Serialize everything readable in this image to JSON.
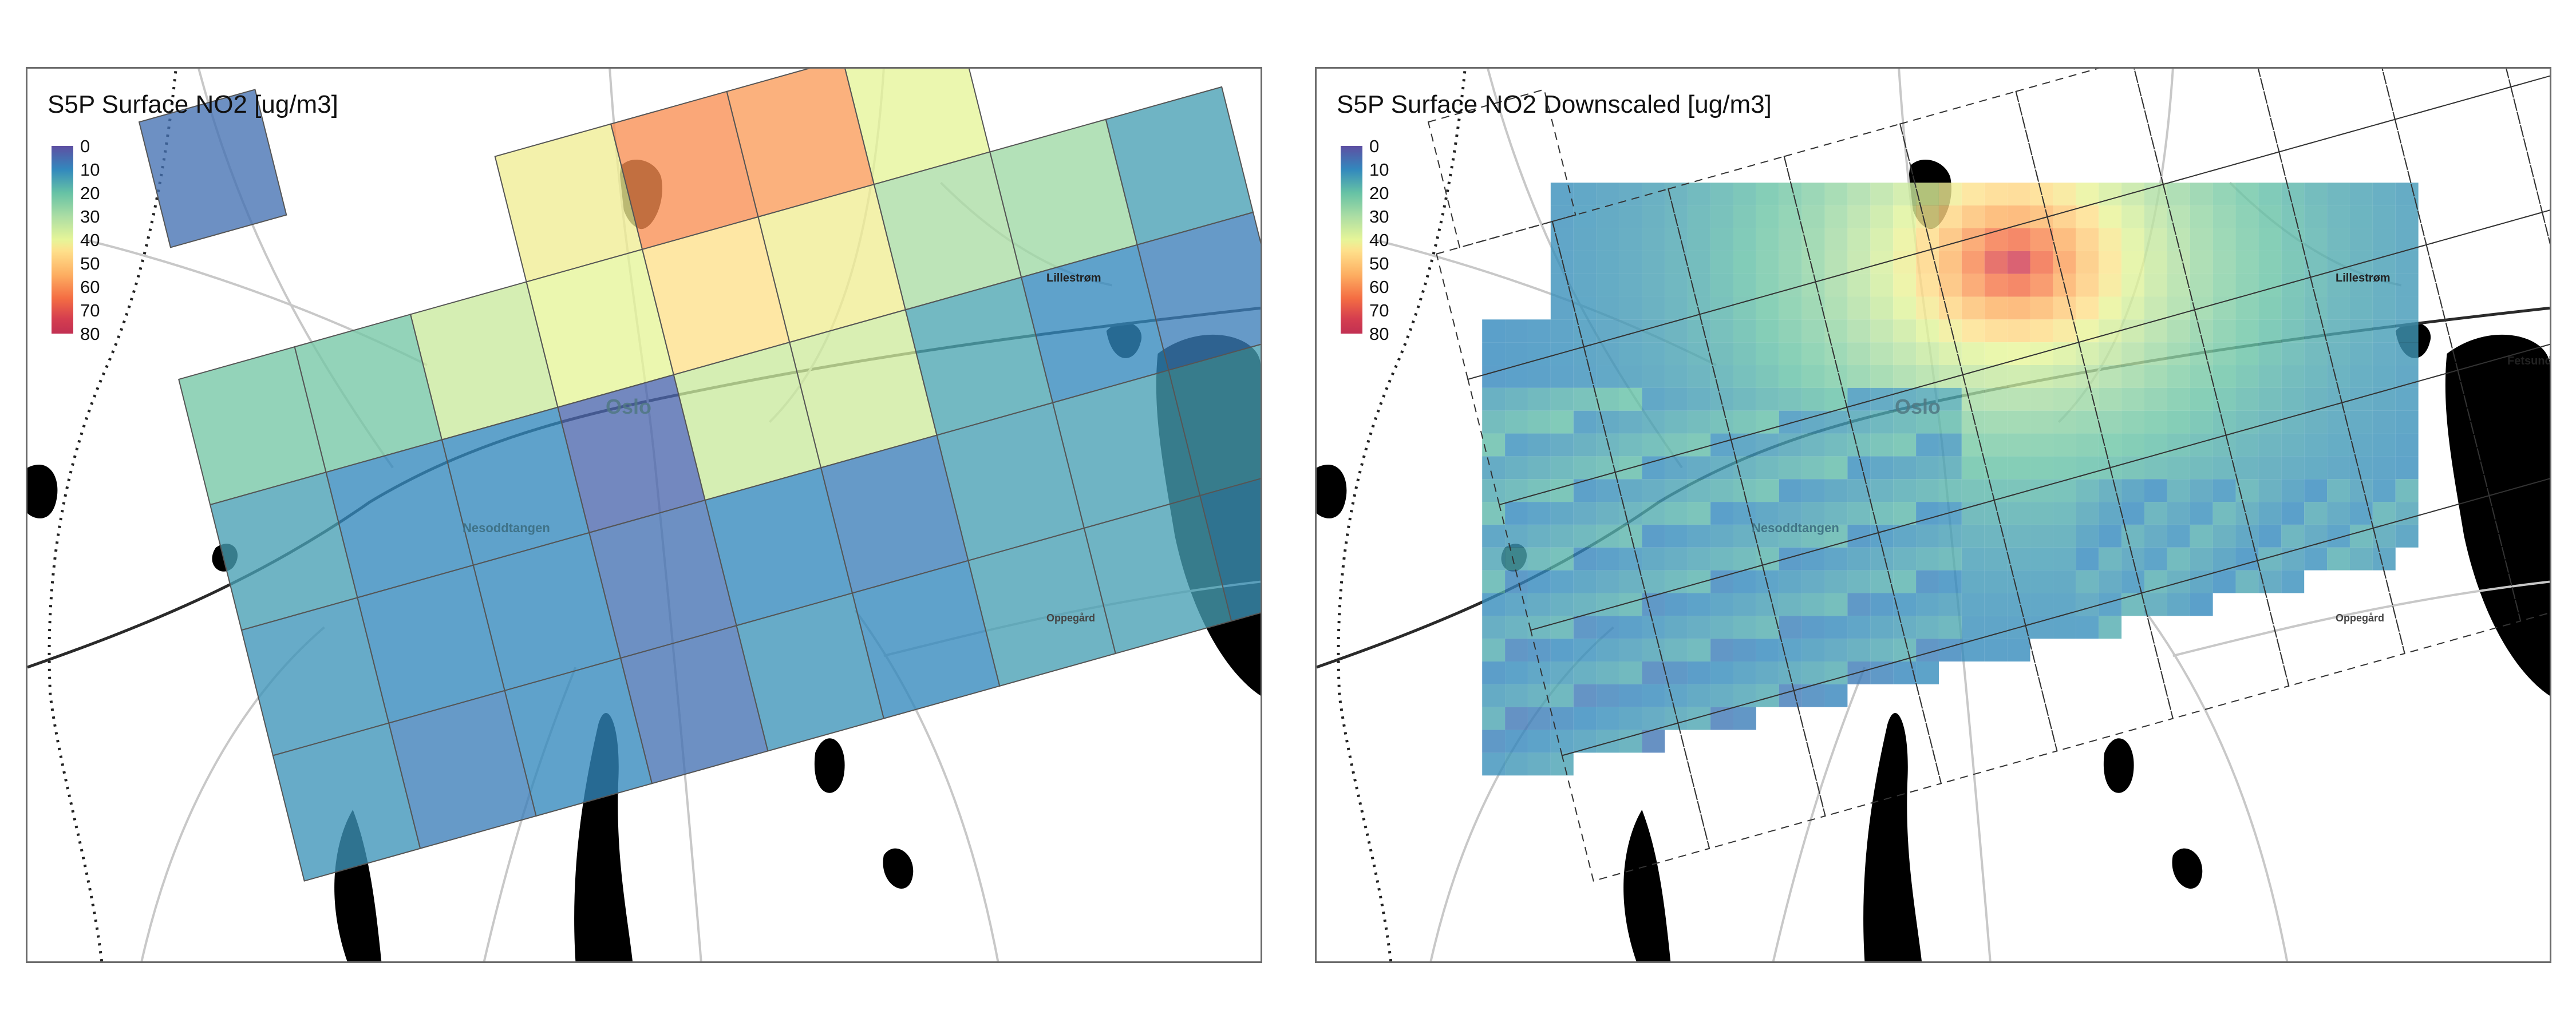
{
  "panels": {
    "left": {
      "title": "S5P Surface NO2 [ug/m3]"
    },
    "right": {
      "title": "S5P Surface NO2 Downscaled [ug/m3]"
    }
  },
  "legend": {
    "ticks": [
      "0",
      "10",
      "20",
      "30",
      "40",
      "50",
      "60",
      "70",
      "80"
    ],
    "vmin": 0,
    "vmax": 80,
    "colormap": "Spectral_r"
  },
  "places": {
    "oslo": "Oslo",
    "nesoddtangen": "Nesoddtangen",
    "lillestrom": "Lillestrøm",
    "fetsund": "Fetsund",
    "oppegard": "Oppegård"
  },
  "colors": {
    "map_border": "#6b6b6b",
    "water": "#000000",
    "roads": "#d2d2d2"
  },
  "chart_data": [
    {
      "type": "heatmap",
      "title": "S5P Surface NO2 [ug/m3]",
      "units": "ug/m3",
      "color_range": [
        0,
        80
      ],
      "grid_rows": [
        [
          6,
          null,
          null,
          null,
          null,
          null,
          null,
          null,
          null,
          null
        ],
        [
          null,
          null,
          null,
          42,
          60,
          58,
          40,
          null,
          null,
          null
        ],
        [
          22,
          22,
          35,
          40,
          45,
          42,
          30,
          28,
          14,
          null
        ],
        [
          14,
          10,
          10,
          4,
          35,
          36,
          15,
          10,
          8,
          null
        ],
        [
          12,
          10,
          10,
          6,
          10,
          8,
          14,
          14,
          14,
          6
        ],
        [
          12,
          8,
          10,
          6,
          12,
          10,
          14,
          14,
          12,
          8
        ]
      ]
    },
    {
      "type": "heatmap",
      "title": "S5P Surface NO2 Downscaled [ug/m3]",
      "units": "ug/m3",
      "color_range": [
        0,
        80
      ],
      "description_values": "fine grid with maximum values near central Oslo"
    }
  ]
}
